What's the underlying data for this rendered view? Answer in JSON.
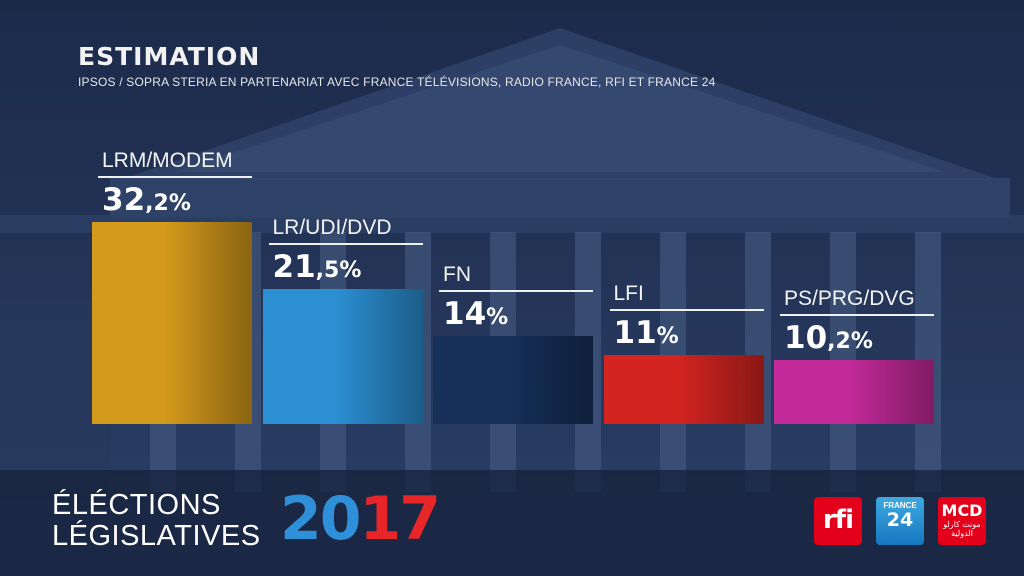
{
  "header": {
    "title": "ESTIMATION",
    "subtitle": "IPSOS / SOPRA STERIA EN PARTENARIAT AVEC FRANCE TÉLÉVISIONS, RADIO FRANCE, RFI ET FRANCE 24"
  },
  "chart_data": {
    "type": "bar",
    "title": "ESTIMATION",
    "categories": [
      "LRM/MODEM",
      "LR/UDI/DVD",
      "FN",
      "LFI",
      "PS/PRG/DVG"
    ],
    "values": [
      32.2,
      21.5,
      14,
      11,
      10.2
    ],
    "value_labels": [
      {
        "int": "32",
        "dec": ",2",
        "pct": "%"
      },
      {
        "int": "21",
        "dec": ",5",
        "pct": "%"
      },
      {
        "int": "14",
        "dec": "",
        "pct": "%"
      },
      {
        "int": "11",
        "dec": "",
        "pct": "%"
      },
      {
        "int": "10",
        "dec": ",2",
        "pct": "%"
      }
    ],
    "colors": [
      "#d49a1c",
      "#2b8fd2",
      "#16305a",
      "#d32420",
      "#c42a9a"
    ],
    "xlabel": "",
    "ylabel": "",
    "grid": false,
    "legend": "none"
  },
  "footer": {
    "line1": "ÉLÉCTIONS",
    "line2": "LÉGISLATIVES",
    "year_a": "20",
    "year_b": "17",
    "year_a_color": "#2f8fd8",
    "year_b_color": "#e8262a"
  },
  "logos": {
    "rfi": "rfi",
    "france24_top": "FRANCE",
    "france24_bottom": "24",
    "mcd_top": "MCD",
    "mcd_bottom": "مونت كارلو الدولية"
  }
}
